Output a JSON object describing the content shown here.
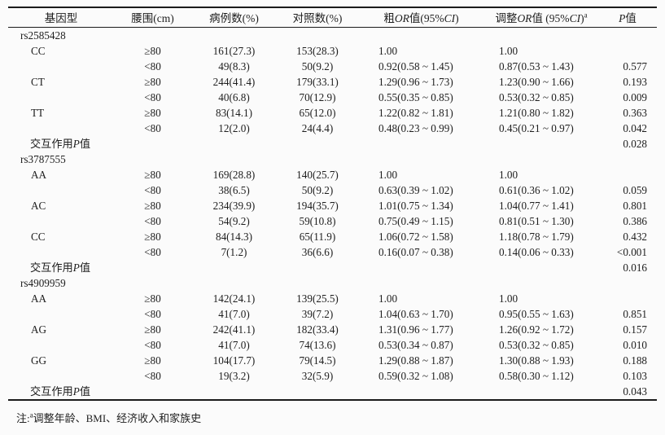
{
  "table": {
    "columns": [
      {
        "key": "genotype",
        "label_segments": [
          {
            "t": "基因型"
          }
        ]
      },
      {
        "key": "waist",
        "label_segments": [
          {
            "t": "腰围(cm)"
          }
        ]
      },
      {
        "key": "cases",
        "label_segments": [
          {
            "t": "病例数(%)"
          }
        ]
      },
      {
        "key": "controls",
        "label_segments": [
          {
            "t": "对照数(%)"
          }
        ]
      },
      {
        "key": "crude_or",
        "label_segments": [
          {
            "t": "粗"
          },
          {
            "t": "OR",
            "i": true
          },
          {
            "t": "值(95%"
          },
          {
            "t": "CI",
            "i": true
          },
          {
            "t": ")"
          }
        ]
      },
      {
        "key": "adjusted_or",
        "label_segments": [
          {
            "t": "调整"
          },
          {
            "t": "OR",
            "i": true
          },
          {
            "t": "值 (95%"
          },
          {
            "t": "CI",
            "i": true
          },
          {
            "t": ")"
          },
          {
            "t": "a",
            "sup": true
          }
        ]
      },
      {
        "key": "p",
        "label_segments": [
          {
            "t": "P",
            "i": true
          },
          {
            "t": "值"
          }
        ]
      }
    ],
    "interaction_label_segments": [
      {
        "t": "交互作用"
      },
      {
        "t": "P",
        "i": true
      },
      {
        "t": "值"
      }
    ],
    "rows": [
      {
        "type": "group",
        "genotype": "rs2585428"
      },
      {
        "type": "data",
        "genotype": "CC",
        "waist": "≥80",
        "cases": "161(27.3)",
        "controls": "153(28.3)",
        "crude_or": "1.00",
        "adjusted_or": "1.00",
        "p": ""
      },
      {
        "type": "data",
        "genotype": "",
        "waist": "<80",
        "cases": "49(8.3)",
        "controls": "50(9.2)",
        "crude_or": "0.92(0.58 ~ 1.45)",
        "adjusted_or": "0.87(0.53 ~ 1.43)",
        "p": "0.577"
      },
      {
        "type": "data",
        "genotype": "CT",
        "waist": "≥80",
        "cases": "244(41.4)",
        "controls": "179(33.1)",
        "crude_or": "1.29(0.96 ~ 1.73)",
        "adjusted_or": "1.23(0.90 ~ 1.66)",
        "p": "0.193"
      },
      {
        "type": "data",
        "genotype": "",
        "waist": "<80",
        "cases": "40(6.8)",
        "controls": "70(12.9)",
        "crude_or": "0.55(0.35 ~ 0.85)",
        "adjusted_or": "0.53(0.32 ~ 0.85)",
        "p": "0.009"
      },
      {
        "type": "data",
        "genotype": "TT",
        "waist": "≥80",
        "cases": "83(14.1)",
        "controls": "65(12.0)",
        "crude_or": "1.22(0.82 ~ 1.81)",
        "adjusted_or": "1.21(0.80 ~ 1.82)",
        "p": "0.363"
      },
      {
        "type": "data",
        "genotype": "",
        "waist": "<80",
        "cases": "12(2.0)",
        "controls": "24(4.4)",
        "crude_or": "0.48(0.23 ~ 0.99)",
        "adjusted_or": "0.45(0.21 ~ 0.97)",
        "p": "0.042"
      },
      {
        "type": "interaction",
        "p": "0.028"
      },
      {
        "type": "group",
        "genotype": "rs3787555"
      },
      {
        "type": "data",
        "genotype": "AA",
        "waist": "≥80",
        "cases": "169(28.8)",
        "controls": "140(25.7)",
        "crude_or": "1.00",
        "adjusted_or": "1.00",
        "p": ""
      },
      {
        "type": "data",
        "genotype": "",
        "waist": "<80",
        "cases": "38(6.5)",
        "controls": "50(9.2)",
        "crude_or": "0.63(0.39 ~ 1.02)",
        "adjusted_or": "0.61(0.36 ~ 1.02)",
        "p": "0.059"
      },
      {
        "type": "data",
        "genotype": "AC",
        "waist": "≥80",
        "cases": "234(39.9)",
        "controls": "194(35.7)",
        "crude_or": "1.01(0.75 ~ 1.34)",
        "adjusted_or": "1.04(0.77 ~ 1.41)",
        "p": "0.801"
      },
      {
        "type": "data",
        "genotype": "",
        "waist": "<80",
        "cases": "54(9.2)",
        "controls": "59(10.8)",
        "crude_or": "0.75(0.49 ~ 1.15)",
        "adjusted_or": "0.81(0.51 ~ 1.30)",
        "p": "0.386"
      },
      {
        "type": "data",
        "genotype": "CC",
        "waist": "≥80",
        "cases": "84(14.3)",
        "controls": "65(11.9)",
        "crude_or": "1.06(0.72 ~ 1.58)",
        "adjusted_or": "1.18(0.78 ~ 1.79)",
        "p": "0.432"
      },
      {
        "type": "data",
        "genotype": "",
        "waist": "<80",
        "cases": "7(1.2)",
        "controls": "36(6.6)",
        "crude_or": "0.16(0.07 ~ 0.38)",
        "adjusted_or": "0.14(0.06 ~ 0.33)",
        "p": "<0.001"
      },
      {
        "type": "interaction",
        "p": "0.016"
      },
      {
        "type": "group",
        "genotype": "rs4909959"
      },
      {
        "type": "data",
        "genotype": "AA",
        "waist": "≥80",
        "cases": "142(24.1)",
        "controls": "139(25.5)",
        "crude_or": "1.00",
        "adjusted_or": "1.00",
        "p": ""
      },
      {
        "type": "data",
        "genotype": "",
        "waist": "<80",
        "cases": "41(7.0)",
        "controls": "39(7.2)",
        "crude_or": "1.04(0.63 ~ 1.70)",
        "adjusted_or": "0.95(0.55 ~ 1.63)",
        "p": "0.851"
      },
      {
        "type": "data",
        "genotype": "AG",
        "waist": "≥80",
        "cases": "242(41.1)",
        "controls": "182(33.4)",
        "crude_or": "1.31(0.96 ~ 1.77)",
        "adjusted_or": "1.26(0.92 ~ 1.72)",
        "p": "0.157"
      },
      {
        "type": "data",
        "genotype": "",
        "waist": "<80",
        "cases": "41(7.0)",
        "controls": "74(13.6)",
        "crude_or": "0.53(0.34 ~ 0.87)",
        "adjusted_or": "0.53(0.32 ~ 0.85)",
        "p": "0.010"
      },
      {
        "type": "data",
        "genotype": "GG",
        "waist": "≥80",
        "cases": "104(17.7)",
        "controls": "79(14.5)",
        "crude_or": "1.29(0.88 ~ 1.87)",
        "adjusted_or": "1.30(0.88 ~ 1.93)",
        "p": "0.188"
      },
      {
        "type": "data",
        "genotype": "",
        "waist": "<80",
        "cases": "19(3.2)",
        "controls": "32(5.9)",
        "crude_or": "0.59(0.32 ~ 1.08)",
        "adjusted_or": "0.58(0.30 ~ 1.12)",
        "p": "0.103"
      },
      {
        "type": "interaction",
        "p": "0.043"
      }
    ]
  },
  "footnote": {
    "segments": [
      {
        "t": "注:"
      },
      {
        "t": "a",
        "sup": true
      },
      {
        "t": "调整年龄、BMI、经济收入和家族史"
      }
    ]
  }
}
